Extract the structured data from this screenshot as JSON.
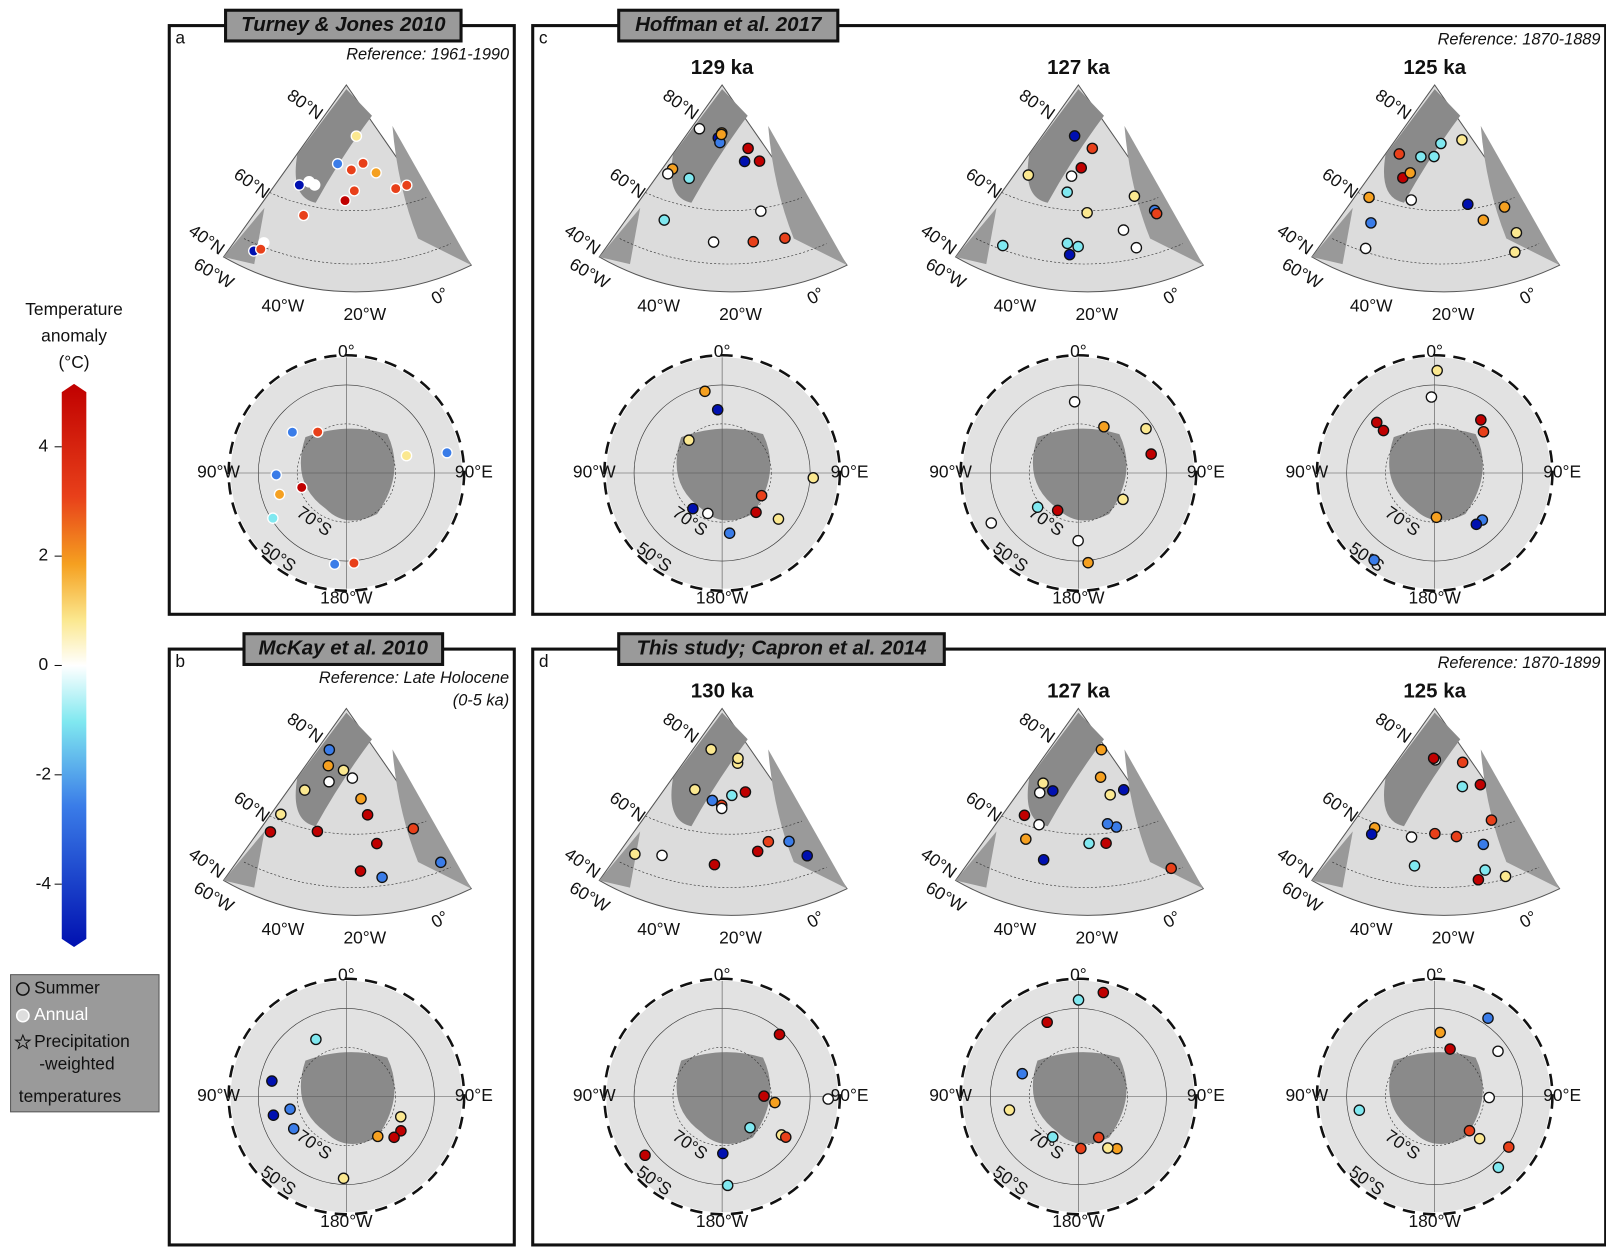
{
  "colorbar": {
    "title": [
      "Temperature",
      "anomaly",
      "(°C)"
    ],
    "lim": [
      -5,
      5
    ],
    "ticks": [
      -4,
      -2,
      0,
      2,
      4
    ]
  },
  "legend": {
    "items": [
      "Summer",
      "Annual"
    ],
    "precipitation": [
      "Precipitation",
      "-weighted",
      "temperatures"
    ]
  },
  "map_labels": {
    "north": {
      "lat": [
        "80°N",
        "60°N",
        "40°N"
      ],
      "lon": [
        "60°W",
        "40°W",
        "20°W",
        "0°"
      ]
    },
    "south": {
      "top": "0°",
      "left": "90°W",
      "right": "90°E",
      "bottom": "180°W",
      "lat": [
        "70°S",
        "50°S"
      ]
    }
  },
  "panels": [
    {
      "letter": "a",
      "title": "Turney & Jones 2010",
      "reference": [
        "Reference: 1961-1990"
      ]
    },
    {
      "letter": "c",
      "title": "Hoffman et al. 2017",
      "reference": [
        "Reference: 1870-1889"
      ],
      "periods": [
        "129 ka",
        "127 ka",
        "125 ka"
      ]
    },
    {
      "letter": "b",
      "title": "McKay et al. 2010",
      "reference": [
        "Reference: Late Holocene",
        "(0-5 ka)"
      ]
    },
    {
      "letter": "d",
      "title": "This study; Capron et al. 2014",
      "reference": [
        "Reference: 1870-1899"
      ],
      "periods": [
        "130 ka",
        "127 ka",
        "125 ka"
      ]
    }
  ]
}
